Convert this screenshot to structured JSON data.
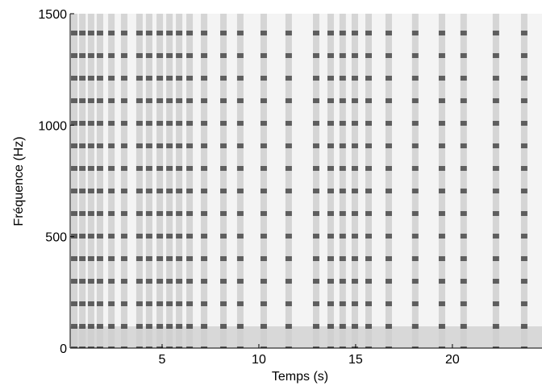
{
  "chart_data": {
    "type": "spectrogram",
    "xlabel": "Temps (s)",
    "ylabel": "Fréquence (Hz)",
    "x": [
      0.46,
      0.88,
      1.33,
      1.79,
      2.38,
      3.04,
      3.83,
      4.33,
      4.88,
      5.38,
      5.88,
      6.42,
      7.17,
      8.17,
      9.04,
      10.25,
      11.54,
      12.96,
      13.71,
      14.33,
      14.96,
      15.67,
      16.71,
      18.08,
      19.46,
      20.58,
      22.25,
      23.71
    ],
    "xlim": [
      0.25,
      24.63
    ],
    "xticks": [
      5,
      10,
      15,
      20
    ],
    "ylim": [
      0,
      1500
    ],
    "yticks": [
      0,
      500,
      1000,
      1500
    ],
    "color": "#333333"
  }
}
